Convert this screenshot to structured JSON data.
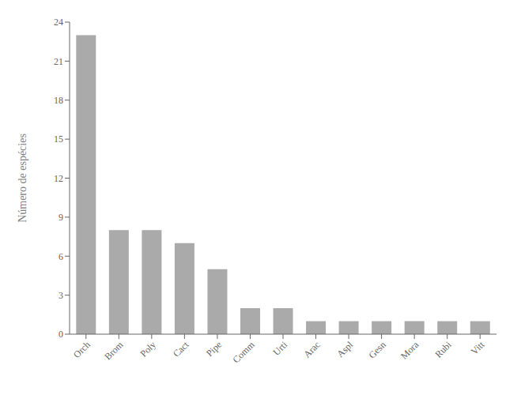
{
  "chart_data": {
    "type": "bar",
    "categories": [
      "Orch",
      "Brom",
      "Poly",
      "Cact",
      "Pipe",
      "Comm",
      "Urti",
      "Arac",
      "Aspl",
      "Gesn",
      "Mora",
      "Rubi",
      "Vitt"
    ],
    "values": [
      23,
      8,
      8,
      7,
      5,
      2,
      2,
      1,
      1,
      1,
      1,
      1,
      1
    ],
    "color": "#aaaaaa",
    "ylabel": "Número de espécies",
    "ylim": [
      0,
      24
    ],
    "yticks": [
      0,
      3,
      6,
      9,
      12,
      15,
      18,
      21,
      24
    ],
    "grid": false
  }
}
